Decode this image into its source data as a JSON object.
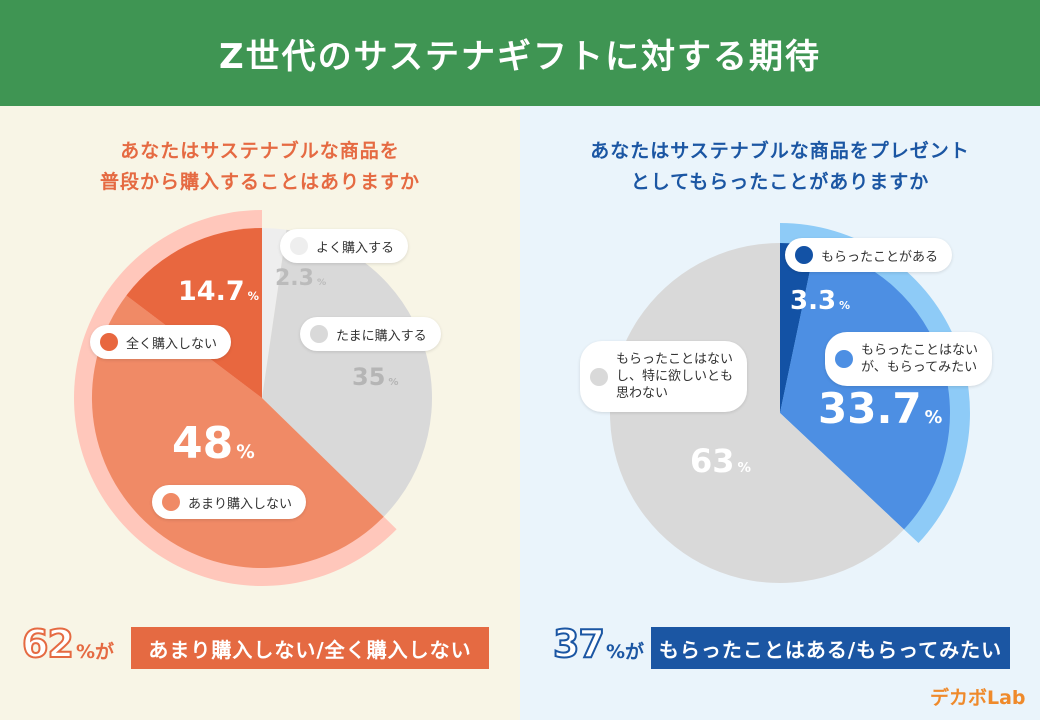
{
  "title": "Z世代のサステナギフトに対する期待",
  "left": {
    "question_line1": "あなたはサステナブルな商品を",
    "question_line2": "普段から購入することはありますか",
    "summary_value": "62",
    "summary_suffix": "%が",
    "summary_banner": "あまり購入しない/全く購入しない"
  },
  "right": {
    "question_line1": "あなたはサステナブルな商品をプレゼント",
    "question_line2": "としてもらったことがありますか",
    "summary_value": "37",
    "summary_suffix": "%が",
    "summary_banner": "もらったことはある/もらってみたい"
  },
  "logo": "デカボLab",
  "colors": {
    "header": "#3f9553",
    "left_accent": "#e56a42",
    "right_accent": "#1b56a3",
    "left_bg": "#f8f5e6",
    "right_bg": "#eaf4fb"
  },
  "chart_data": [
    {
      "type": "pie",
      "title": "あなたはサステナブルな商品を普段から購入することはありますか",
      "slices": [
        {
          "label": "よく購入する",
          "value": 2.3,
          "display": "2.3",
          "color": "#eeeeee"
        },
        {
          "label": "たまに購入する",
          "value": 35,
          "display": "35",
          "color": "#d9d9d9"
        },
        {
          "label": "あまり購入しない",
          "value": 48,
          "display": "48",
          "color": "#f08a66"
        },
        {
          "label": "全く購入しない",
          "value": 14.7,
          "display": "14.7",
          "color": "#e8673f"
        }
      ],
      "unit": "%",
      "highlight_total": 62,
      "highlight_color": "#ffc7bb"
    },
    {
      "type": "pie",
      "title": "あなたはサステナブルな商品をプレゼントとしてもらったことがありますか",
      "slices": [
        {
          "label": "もらったことがある",
          "value": 3.3,
          "display": "3.3",
          "color": "#1352a5"
        },
        {
          "label": "もらったことはないが、もらってみたい",
          "value": 33.7,
          "display": "33.7",
          "color": "#4d8fe3"
        },
        {
          "label": "もらったことはないし、特に欲しいとも思わない",
          "value": 63,
          "display": "63",
          "color": "#d9d9d9"
        }
      ],
      "unit": "%",
      "highlight_total": 37,
      "highlight_color": "#8ecbf7"
    }
  ]
}
